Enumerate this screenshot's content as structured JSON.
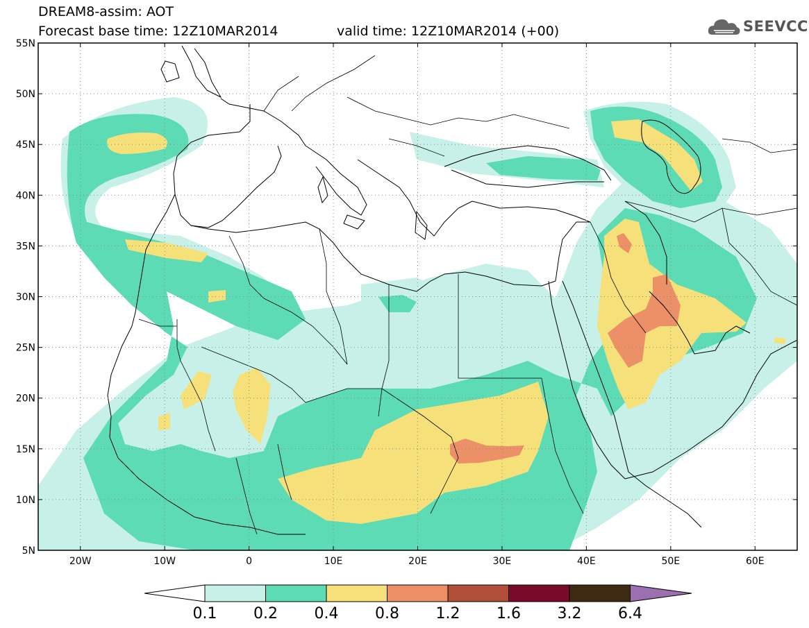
{
  "title_line1": "DREAM8-assim: AOT",
  "title_line2_base": "Forecast base time: 12Z10MAR2014",
  "title_line2_valid": "valid time: 12Z10MAR2014 (+00)",
  "logo_text": "SEEVCCC",
  "map": {
    "lon_range": [
      -25,
      65
    ],
    "lat_range": [
      5,
      55
    ],
    "lat_ticks": [
      "55N",
      "50N",
      "45N",
      "40N",
      "35N",
      "30N",
      "25N",
      "20N",
      "15N",
      "10N",
      "5N"
    ],
    "lon_ticks": [
      "20W",
      "10W",
      "0",
      "10E",
      "20E",
      "30E",
      "40E",
      "50E",
      "60E"
    ],
    "gridlines": true
  },
  "colorbar": {
    "labels": [
      "0.1",
      "0.2",
      "0.4",
      "0.8",
      "1.2",
      "1.6",
      "3.2",
      "6.4"
    ],
    "colors": [
      "#c6f0e8",
      "#5ddbb5",
      "#f5e07a",
      "#ec9068",
      "#b0503a",
      "#7a0a2a",
      "#3e2a12",
      "#9b6fb0"
    ]
  }
}
